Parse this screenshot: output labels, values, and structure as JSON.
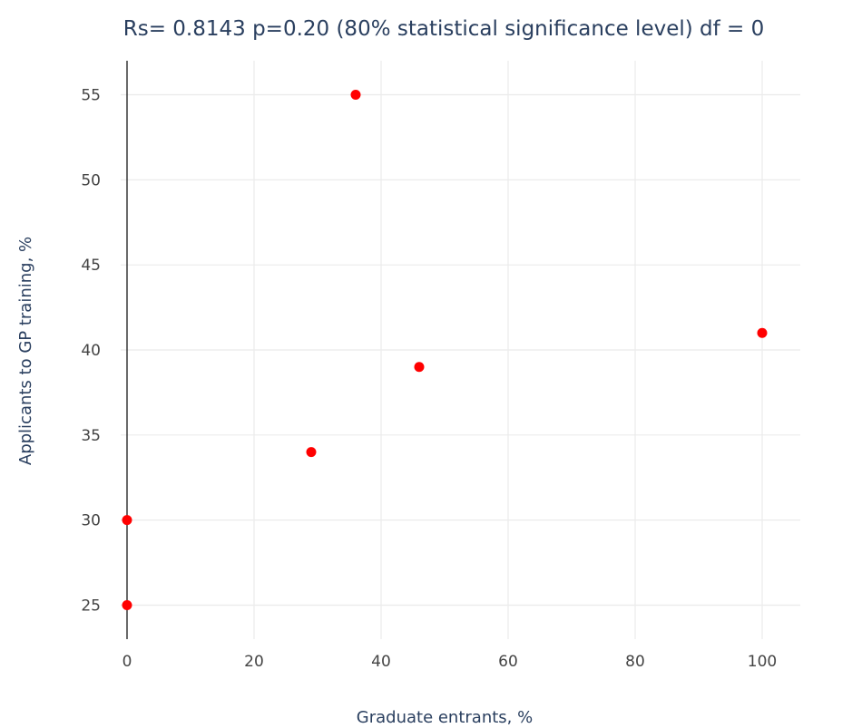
{
  "chart_data": {
    "type": "scatter",
    "title": "Rs= 0.8143  p=0.20 (80% statistical significance level)  df = 0",
    "xlabel": "Graduate entrants, %",
    "ylabel": "Applicants to GP training, %",
    "xlim": [
      -1,
      106
    ],
    "ylim": [
      23,
      57
    ],
    "x_ticks": [
      0,
      20,
      40,
      60,
      80,
      100
    ],
    "y_ticks": [
      25,
      30,
      35,
      40,
      45,
      50,
      55
    ],
    "grid": true,
    "marker_color": "#ff0000",
    "points": [
      {
        "x": 0,
        "y": 25
      },
      {
        "x": 0,
        "y": 30
      },
      {
        "x": 29,
        "y": 34
      },
      {
        "x": 36,
        "y": 55
      },
      {
        "x": 46,
        "y": 39
      },
      {
        "x": 100,
        "y": 41
      }
    ]
  }
}
